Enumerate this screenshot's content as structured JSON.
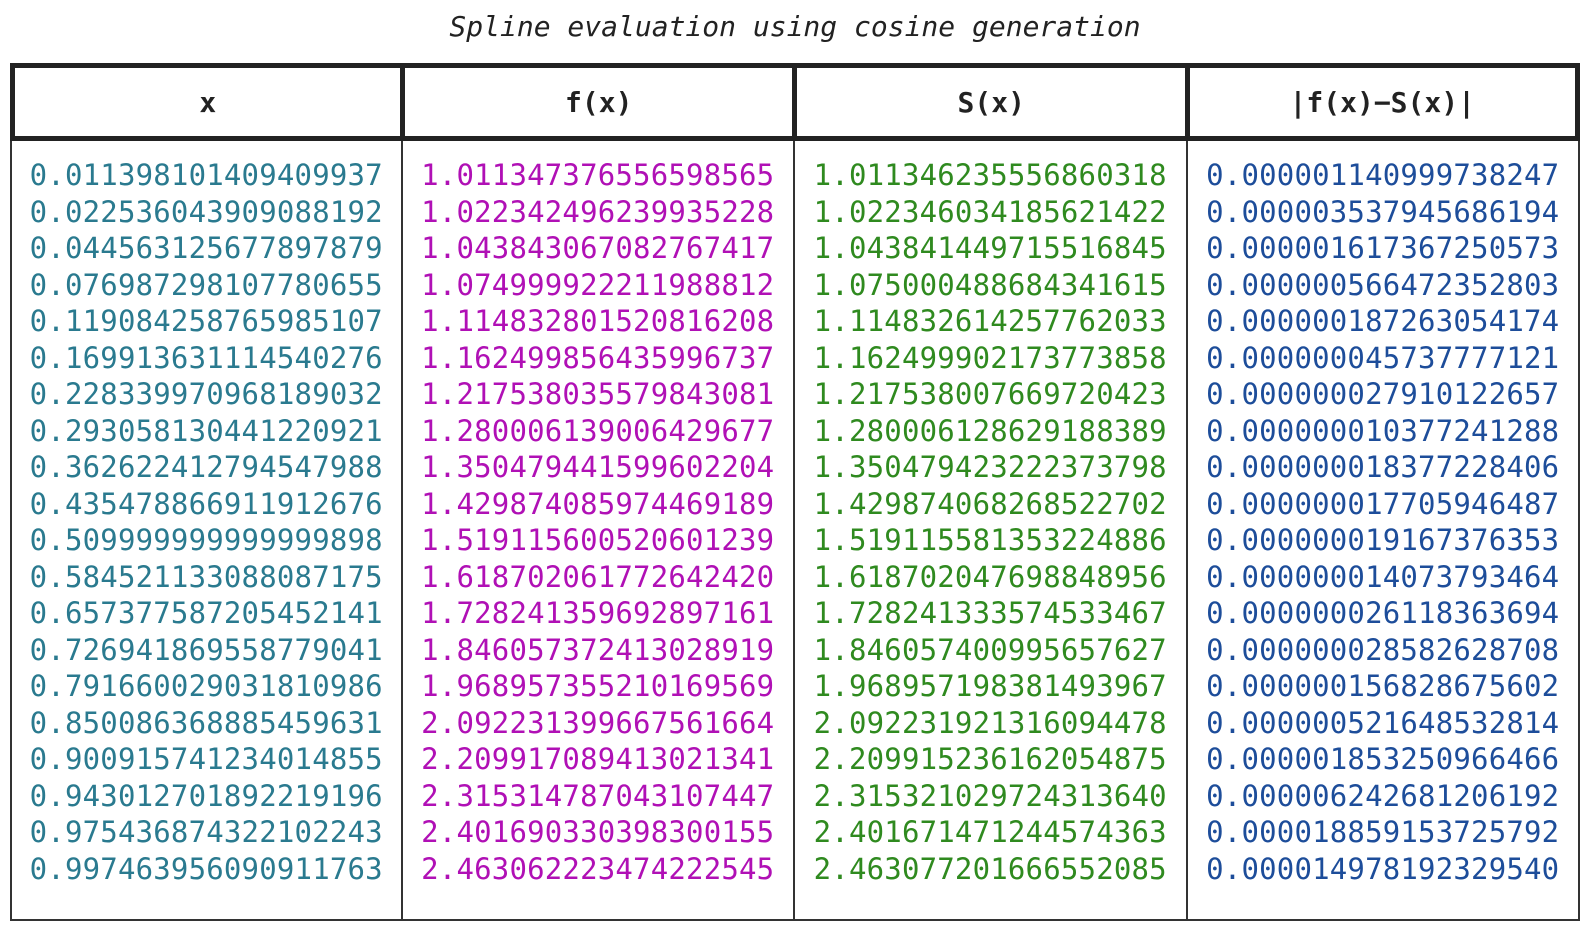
{
  "title": "Spline evaluation using cosine generation",
  "colors": {
    "x": "#2a7a8f",
    "fx": "#b010b5",
    "sx": "#2f8a1f",
    "err": "#1d4d9a"
  },
  "columns": [
    {
      "header": "x",
      "key": "x",
      "color": "#2a7a8f",
      "values": [
        "0.011398101409409937",
        "0.02253604390908819​2",
        "0.044563125677897879",
        "0.076987298107780655",
        "0.119084258765985107",
        "0.169913631114540276",
        "0.228339970968189032",
        "0.293058130441220921",
        "0.362622412794547988",
        "0.435478866911912676",
        "0.509999999999999898",
        "0.584521133088087175",
        "0.657377587205452141",
        "0.726941869558779041",
        "0.791660029031810986",
        "0.850086368885459631",
        "0.900915741234014855",
        "0.943012701892219196",
        "0.975436874322102243",
        "0.997463956090911763"
      ]
    },
    {
      "header": "f(x)",
      "key": "fx",
      "color": "#b010b5",
      "values": [
        "1.011347376556598565",
        "1.022342496239935228",
        "1.043843067082767417",
        "1.074999922211988812",
        "1.114832801520816208",
        "1.162499856435996737",
        "1.217538035579843081",
        "1.280006139006429677",
        "1.350479441599602204",
        "1.429874085974469189",
        "1.519115600520601239",
        "1.618702061772642420",
        "1.728241359692897161",
        "1.846057372413028919",
        "1.968957355210169569",
        "2.092231399667561664",
        "2.209917089413021341",
        "2.315314787043107447",
        "2.401690330398300155",
        "2.463062223474222545"
      ]
    },
    {
      "header": "S(x)",
      "key": "sx",
      "color": "#2f8a1f",
      "values": [
        "1.011346235556860318",
        "1.022346034185621422",
        "1.043841449715516845",
        "1.075000488684341615",
        "1.114832614257762033",
        "1.162499902173773858",
        "1.217538007669720423",
        "1.280006128629188389",
        "1.350479423222373798",
        "1.429874068268522702",
        "1.519115581353224886",
        "1.618702047698848956",
        "1.728241333574533467",
        "1.846057400995657627",
        "1.968957198381493967",
        "2.092231921316094478",
        "2.209915236162054875",
        "2.315321029724313640",
        "2.401671471244574363",
        "2.463077201666552085"
      ]
    },
    {
      "header": "|f(x)−S(x)|",
      "key": "err",
      "color": "#1d4d9a",
      "values": [
        "0.000001140999738247",
        "0.000003537945686194",
        "0.000001617367250573",
        "0.000000566472352803",
        "0.000000187263054174",
        "0.000000045737777121",
        "0.000000027910122657",
        "0.000000010377241288",
        "0.000000018377228406",
        "0.000000017705946487",
        "0.000000019167376353",
        "0.000000014073793464",
        "0.000000026118363694",
        "0.000000028582628708",
        "0.000000156828675602",
        "0.000000521648532814",
        "0.000001853250966466",
        "0.000006242681206192",
        "0.000018859153725792",
        "0.000014978192329540"
      ]
    }
  ]
}
